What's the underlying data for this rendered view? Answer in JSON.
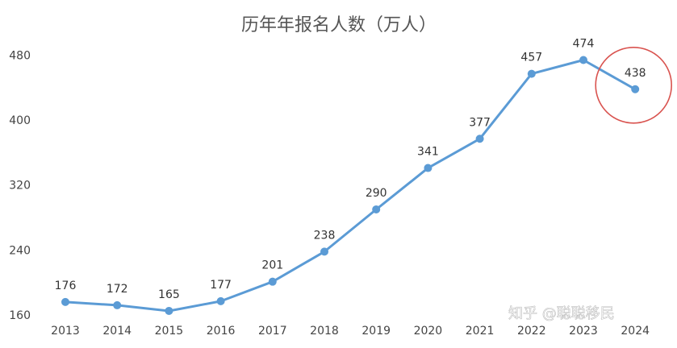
{
  "chart_data": {
    "type": "line",
    "title": "历年年报名人数（万人）",
    "xlabel": "",
    "ylabel": "",
    "categories": [
      "2013",
      "2014",
      "2015",
      "2016",
      "2017",
      "2018",
      "2019",
      "2020",
      "2021",
      "2022",
      "2023",
      "2024"
    ],
    "series": [
      {
        "values": [
          176,
          172,
          165,
          177,
          201,
          238,
          290,
          341,
          377,
          457,
          474,
          438
        ]
      }
    ],
    "yticks": [
      160,
      240,
      320,
      400,
      480
    ],
    "ylim": [
      160,
      494
    ],
    "grid": false,
    "highlight": {
      "category": "2024",
      "shape": "circle",
      "color": "#d9534f"
    }
  },
  "colors": {
    "line": "#5b9bd5",
    "highlight": "#d9534f"
  },
  "watermark": {
    "text": "知乎 @聪聪移民"
  }
}
